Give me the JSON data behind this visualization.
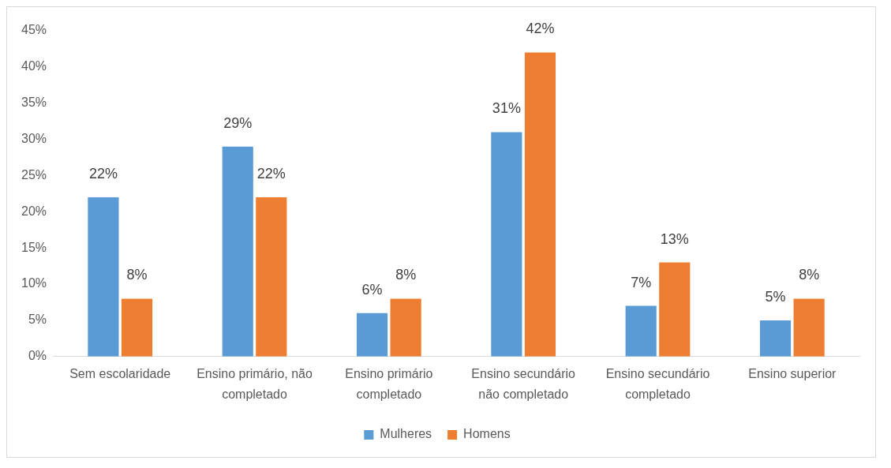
{
  "chart_data": {
    "type": "bar",
    "categories": [
      "Sem escolaridade",
      "Ensino primário, não completado",
      "Ensino primário completado",
      "Ensino secundário não completado",
      "Ensino secundário completado",
      "Ensino superior"
    ],
    "series": [
      {
        "name": "Mulheres",
        "color": "#5b9bd5",
        "values": [
          22,
          29,
          6,
          31,
          7,
          5
        ],
        "value_labels": [
          "22%",
          "29%",
          "6%",
          "31%",
          "7%",
          "5%"
        ]
      },
      {
        "name": "Homens",
        "color": "#ed7d31",
        "values": [
          8,
          22,
          8,
          42,
          13,
          8
        ],
        "value_labels": [
          "8%",
          "22%",
          "8%",
          "42%",
          "13%",
          "8%"
        ]
      }
    ],
    "ylim": [
      0,
      45
    ],
    "yticks": [
      {
        "value": 0,
        "label": "0%"
      },
      {
        "value": 5,
        "label": "5%"
      },
      {
        "value": 10,
        "label": "10%"
      },
      {
        "value": 15,
        "label": "15%"
      },
      {
        "value": 20,
        "label": "20%"
      },
      {
        "value": 25,
        "label": "25%"
      },
      {
        "value": 30,
        "label": "30%"
      },
      {
        "value": 35,
        "label": "35%"
      },
      {
        "value": 40,
        "label": "40%"
      },
      {
        "value": 45,
        "label": "45%"
      }
    ],
    "grid": false,
    "legend": "bottom"
  }
}
